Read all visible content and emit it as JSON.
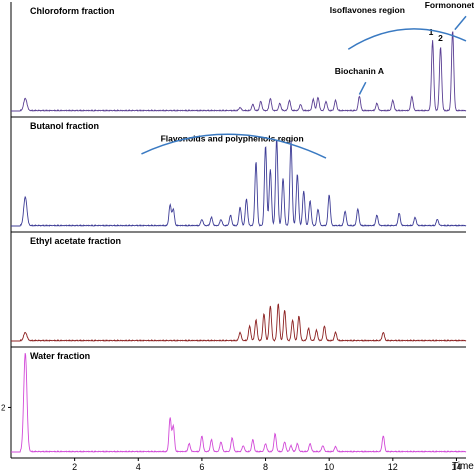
{
  "figure": {
    "x_axis_label": "Time",
    "axis_color": "#000000",
    "bracket_color": "#3a7ac2"
  },
  "chart_data": [
    {
      "type": "line",
      "title": "Chloroform fraction",
      "color": "#5a3f93",
      "xlim": [
        0,
        14.3
      ],
      "y_tick_label": "",
      "series": [
        {
          "peaks": [
            {
              "x": 0.45,
              "y": 0.12
            },
            {
              "x": 7.2,
              "y": 0.03
            },
            {
              "x": 7.6,
              "y": 0.06
            },
            {
              "x": 7.85,
              "y": 0.09
            },
            {
              "x": 8.15,
              "y": 0.12
            },
            {
              "x": 8.45,
              "y": 0.07
            },
            {
              "x": 8.75,
              "y": 0.1
            },
            {
              "x": 9.1,
              "y": 0.06
            },
            {
              "x": 9.5,
              "y": 0.11
            },
            {
              "x": 9.65,
              "y": 0.13
            },
            {
              "x": 9.9,
              "y": 0.09
            },
            {
              "x": 10.2,
              "y": 0.1
            },
            {
              "x": 10.95,
              "y": 0.14
            },
            {
              "x": 11.5,
              "y": 0.07
            },
            {
              "x": 12.0,
              "y": 0.1
            },
            {
              "x": 12.6,
              "y": 0.14
            },
            {
              "x": 13.25,
              "y": 0.68
            },
            {
              "x": 13.5,
              "y": 0.62
            },
            {
              "x": 13.88,
              "y": 0.78
            }
          ]
        }
      ],
      "annotations": [
        {
          "text": "Isoflavones region",
          "x": 11.2,
          "y": 0.95
        },
        {
          "text": "Biochanin A",
          "x": 10.95,
          "y": 0.36
        },
        {
          "text": "Formononetin",
          "x": 13.9,
          "y": 1.0
        },
        {
          "text": "1",
          "x": 13.2,
          "y": 0.74
        },
        {
          "text": "2",
          "x": 13.5,
          "y": 0.68
        }
      ]
    },
    {
      "type": "line",
      "title": "Butanol fraction",
      "color": "#3d3c96",
      "xlim": [
        0,
        14.3
      ],
      "y_tick_label": "",
      "series": [
        {
          "peaks": [
            {
              "x": 0.45,
              "y": 0.28
            },
            {
              "x": 5.0,
              "y": 0.2
            },
            {
              "x": 5.1,
              "y": 0.16
            },
            {
              "x": 6.0,
              "y": 0.06
            },
            {
              "x": 6.3,
              "y": 0.08
            },
            {
              "x": 6.6,
              "y": 0.06
            },
            {
              "x": 6.9,
              "y": 0.1
            },
            {
              "x": 7.2,
              "y": 0.18
            },
            {
              "x": 7.4,
              "y": 0.26
            },
            {
              "x": 7.7,
              "y": 0.62
            },
            {
              "x": 8.0,
              "y": 0.78
            },
            {
              "x": 8.15,
              "y": 0.55
            },
            {
              "x": 8.35,
              "y": 0.85
            },
            {
              "x": 8.55,
              "y": 0.46
            },
            {
              "x": 8.8,
              "y": 0.82
            },
            {
              "x": 9.0,
              "y": 0.5
            },
            {
              "x": 9.2,
              "y": 0.34
            },
            {
              "x": 9.4,
              "y": 0.24
            },
            {
              "x": 9.65,
              "y": 0.16
            },
            {
              "x": 10.0,
              "y": 0.3
            },
            {
              "x": 10.5,
              "y": 0.14
            },
            {
              "x": 10.9,
              "y": 0.16
            },
            {
              "x": 11.5,
              "y": 0.1
            },
            {
              "x": 12.2,
              "y": 0.12
            },
            {
              "x": 12.7,
              "y": 0.08
            },
            {
              "x": 13.4,
              "y": 0.06
            }
          ]
        }
      ],
      "annotations": [
        {
          "text": "Flavonoids and polyphenols region",
          "x": 6.95,
          "y": 0.82
        }
      ]
    },
    {
      "type": "line",
      "title": "Ethyl acetate fraction",
      "color": "#8c2121",
      "xlim": [
        0,
        14.3
      ],
      "y_tick_label": "",
      "series": [
        {
          "peaks": [
            {
              "x": 0.45,
              "y": 0.08
            },
            {
              "x": 7.2,
              "y": 0.08
            },
            {
              "x": 7.5,
              "y": 0.14
            },
            {
              "x": 7.7,
              "y": 0.2
            },
            {
              "x": 7.95,
              "y": 0.26
            },
            {
              "x": 8.15,
              "y": 0.34
            },
            {
              "x": 8.4,
              "y": 0.36
            },
            {
              "x": 8.6,
              "y": 0.3
            },
            {
              "x": 8.85,
              "y": 0.2
            },
            {
              "x": 9.05,
              "y": 0.24
            },
            {
              "x": 9.35,
              "y": 0.12
            },
            {
              "x": 9.6,
              "y": 0.1
            },
            {
              "x": 9.85,
              "y": 0.14
            },
            {
              "x": 10.2,
              "y": 0.08
            },
            {
              "x": 11.7,
              "y": 0.08
            }
          ]
        }
      ],
      "annotations": []
    },
    {
      "type": "line",
      "title": "Water fraction",
      "color": "#d24ad8",
      "xlim": [
        0,
        14.3
      ],
      "y_ticks": [
        {
          "label": "2",
          "y": 0.45
        }
      ],
      "series": [
        {
          "peaks": [
            {
              "x": 0.45,
              "y": 1.0
            },
            {
              "x": 5.0,
              "y": 0.34
            },
            {
              "x": 5.1,
              "y": 0.26
            },
            {
              "x": 5.6,
              "y": 0.08
            },
            {
              "x": 6.0,
              "y": 0.16
            },
            {
              "x": 6.3,
              "y": 0.12
            },
            {
              "x": 6.6,
              "y": 0.1
            },
            {
              "x": 6.95,
              "y": 0.14
            },
            {
              "x": 7.3,
              "y": 0.06
            },
            {
              "x": 7.6,
              "y": 0.12
            },
            {
              "x": 8.0,
              "y": 0.08
            },
            {
              "x": 8.3,
              "y": 0.18
            },
            {
              "x": 8.6,
              "y": 0.1
            },
            {
              "x": 8.8,
              "y": 0.06
            },
            {
              "x": 9.0,
              "y": 0.08
            },
            {
              "x": 9.4,
              "y": 0.08
            },
            {
              "x": 9.8,
              "y": 0.06
            },
            {
              "x": 10.2,
              "y": 0.05
            },
            {
              "x": 11.7,
              "y": 0.16
            }
          ]
        }
      ],
      "annotations": []
    }
  ],
  "x_ticks": [
    {
      "label": "2",
      "x": 2
    },
    {
      "label": "4",
      "x": 4
    },
    {
      "label": "6",
      "x": 6
    },
    {
      "label": "8",
      "x": 8
    },
    {
      "label": "10",
      "x": 10
    },
    {
      "label": "12",
      "x": 12
    },
    {
      "label": "14",
      "x": 14
    }
  ]
}
